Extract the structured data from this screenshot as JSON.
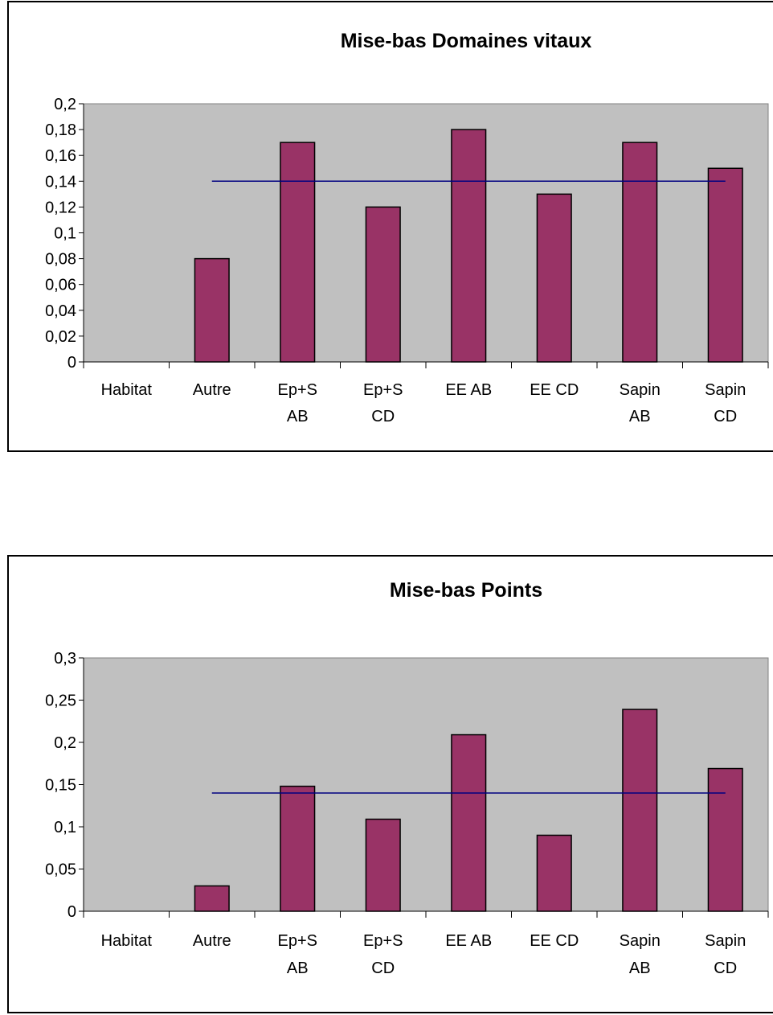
{
  "chart_data": [
    {
      "type": "bar",
      "title": "Mise-bas Domaines vitaux",
      "categories": [
        [
          "Habitat"
        ],
        [
          "Autre"
        ],
        [
          "Ep+S",
          "AB"
        ],
        [
          "Ep+S",
          "CD"
        ],
        [
          "EE AB"
        ],
        [
          "EE CD"
        ],
        [
          "Sapin",
          "AB"
        ],
        [
          "Sapin",
          "CD"
        ]
      ],
      "series": [
        {
          "values": [
            null,
            0.08,
            0.17,
            0.12,
            0.18,
            0.13,
            0.17,
            0.15
          ]
        }
      ],
      "reference_line": {
        "value": 0.14,
        "from_category": 1,
        "to_category": 7
      },
      "ylim": [
        0,
        0.2
      ],
      "yticks": [
        "0",
        "0,02",
        "0,04",
        "0,06",
        "0,08",
        "0,1",
        "0,12",
        "0,14",
        "0,16",
        "0,18",
        "0,2"
      ],
      "grid": false,
      "legend": "none"
    },
    {
      "type": "bar",
      "title": "Mise-bas Points",
      "categories": [
        [
          "Habitat"
        ],
        [
          "Autre"
        ],
        [
          "Ep+S",
          "AB"
        ],
        [
          "Ep+S",
          "CD"
        ],
        [
          "EE AB"
        ],
        [
          "EE CD"
        ],
        [
          "Sapin",
          "AB"
        ],
        [
          "Sapin",
          "CD"
        ]
      ],
      "series": [
        {
          "values": [
            null,
            0.03,
            0.148,
            0.109,
            0.209,
            0.09,
            0.239,
            0.169
          ]
        }
      ],
      "reference_line": {
        "value": 0.14,
        "from_category": 1,
        "to_category": 7
      },
      "ylim": [
        0,
        0.3
      ],
      "yticks": [
        "0",
        "0,05",
        "0,1",
        "0,15",
        "0,2",
        "0,25",
        "0,3"
      ],
      "grid": false,
      "legend": "none"
    }
  ],
  "colors": {
    "plot_background": "#c0c0c0",
    "bar_fill": "#993366",
    "bar_stroke": "#000000",
    "reference_line": "#000080",
    "axis": "#000000"
  }
}
